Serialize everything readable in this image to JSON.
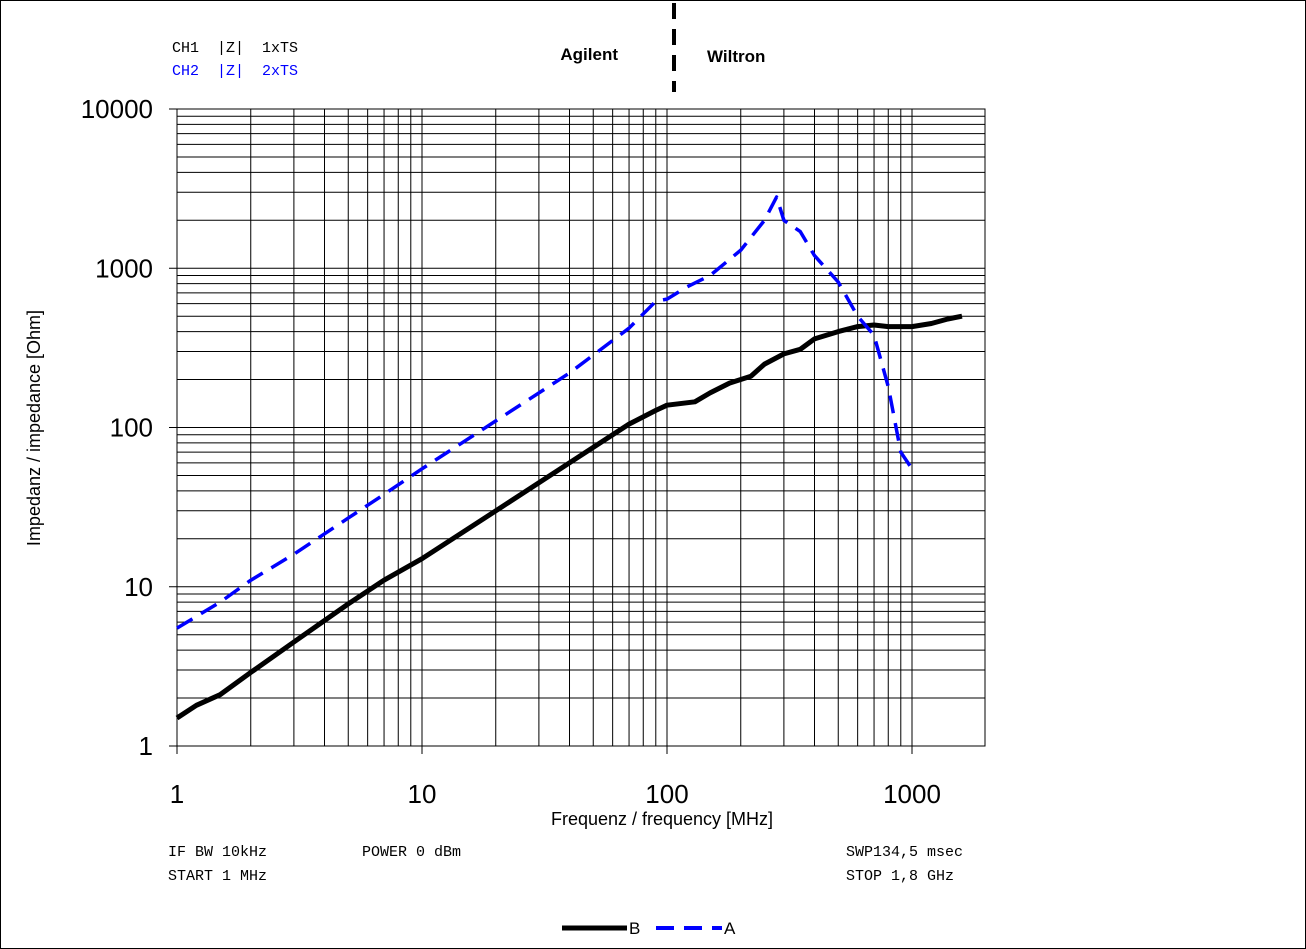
{
  "header": {
    "ch1": "CH1  |Z|  1xTS",
    "ch2": "CH2  |Z|  2xTS",
    "left_label": "Agilent",
    "right_label": "Wiltron"
  },
  "footer": {
    "if_bw": "IF BW 10kHz",
    "power": "POWER 0 dBm",
    "start": "START 1 MHz",
    "swp": "SWP134,5 msec",
    "stop": "STOP 1,8 GHz"
  },
  "legend": {
    "b": "B",
    "a": "A"
  },
  "colors": {
    "series_b": "#000000",
    "series_a": "#0000ff",
    "ch2_text": "#0000ff",
    "grid": "#000000"
  },
  "chart_data": {
    "type": "line",
    "xlabel": "Frequenz / frequency [MHz]",
    "ylabel": "Impedanz / impedance [Ohm]",
    "x_scale": "log",
    "y_scale": "log",
    "xlim": [
      1,
      2000
    ],
    "ylim": [
      1,
      10000
    ],
    "x_ticks": [
      1,
      10,
      100,
      1000
    ],
    "x_tick_labels": [
      "1",
      "10",
      "100",
      "1000"
    ],
    "y_ticks": [
      1,
      10,
      100,
      1000,
      10000
    ],
    "y_tick_labels": [
      "1",
      "10",
      "100",
      "1000",
      "10000"
    ],
    "grid": true,
    "legend_position": "bottom-center",
    "divider_x": 110,
    "series": [
      {
        "name": "B",
        "style": "solid",
        "x": [
          1,
          1.2,
          1.5,
          2,
          3,
          5,
          7,
          10,
          20,
          40,
          70,
          90,
          100,
          130,
          150,
          180,
          220,
          250,
          300,
          350,
          400,
          500,
          600,
          700,
          800,
          1000,
          1200,
          1400,
          1600
        ],
        "y": [
          1.5,
          1.8,
          2.1,
          2.9,
          4.5,
          7.8,
          11,
          15,
          30,
          60,
          105,
          128,
          138,
          145,
          165,
          190,
          210,
          250,
          290,
          310,
          360,
          400,
          430,
          440,
          430,
          430,
          450,
          480,
          500
        ]
      },
      {
        "name": "A",
        "style": "dashed",
        "x": [
          1,
          1.5,
          2,
          3,
          5,
          7,
          10,
          20,
          40,
          70,
          90,
          100,
          120,
          150,
          200,
          250,
          280,
          300,
          350,
          400,
          500,
          600,
          700,
          800,
          900,
          1000
        ],
        "y": [
          5.5,
          8,
          11,
          16,
          27,
          38,
          55,
          110,
          220,
          420,
          620,
          640,
          760,
          900,
          1300,
          2000,
          2800,
          2000,
          1700,
          1200,
          820,
          500,
          380,
          180,
          70,
          55
        ]
      }
    ]
  }
}
